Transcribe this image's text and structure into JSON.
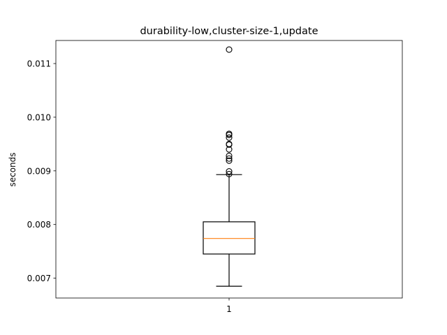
{
  "chart_data": {
    "type": "boxplot",
    "title": "durability-low,cluster-size-1,update",
    "xlabel": "",
    "ylabel": "seconds",
    "categories": [
      "1"
    ],
    "ylim": [
      0.00663,
      0.01143
    ],
    "yticks": [
      0.007,
      0.008,
      0.009,
      0.01,
      0.011
    ],
    "ytick_labels": [
      "0.007",
      "0.008",
      "0.009",
      "0.010",
      "0.011"
    ],
    "grid": false,
    "boxes": [
      {
        "label": "1",
        "whisker_low": 0.00685,
        "q1": 0.00745,
        "median": 0.00774,
        "q3": 0.00805,
        "whisker_high": 0.00893,
        "outliers": [
          0.00894,
          0.00899,
          0.00919,
          0.00923,
          0.00928,
          0.0094,
          0.00949,
          0.0095,
          0.00962,
          0.00967,
          0.00969,
          0.01126
        ]
      }
    ],
    "colors": {
      "box": "#000000",
      "median": "#ff7f0e",
      "outlier": "#000000"
    }
  }
}
